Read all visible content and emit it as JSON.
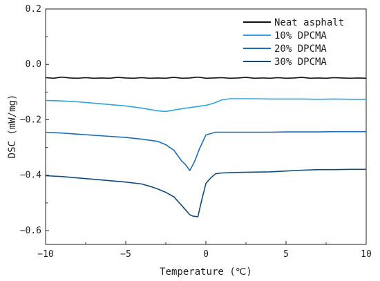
{
  "chart_data": {
    "type": "line",
    "title": "",
    "xlabel": "Temperature (℃)",
    "ylabel": "DSC (mW/mg)",
    "xlim": [
      -10,
      10
    ],
    "ylim": [
      -0.65,
      0.2
    ],
    "xticks": [
      -10,
      -5,
      0,
      5,
      10
    ],
    "xtick_labels": [
      "−10",
      "−5",
      "0",
      "5",
      "10"
    ],
    "yticks": [
      -0.6,
      -0.4,
      -0.2,
      0.0,
      0.2
    ],
    "ytick_labels": [
      "−0.6",
      "−0.4",
      "−0.2",
      "0.0",
      "0.2"
    ],
    "grid": false,
    "legend_position": "top-right",
    "series": [
      {
        "name": "Neat asphalt",
        "color": "#111111",
        "x": [
          -10,
          -9.5,
          -9,
          -8.5,
          -8,
          -7.5,
          -7,
          -6.5,
          -6,
          -5.5,
          -5,
          -4.5,
          -4,
          -3.5,
          -3,
          -2.5,
          -2,
          -1.5,
          -1,
          -0.5,
          0,
          0.5,
          1,
          1.5,
          2,
          2.5,
          3,
          3.5,
          4,
          4.5,
          5,
          5.5,
          6,
          6.5,
          7,
          7.5,
          8,
          8.5,
          9,
          9.5,
          10
        ],
        "y": [
          -0.048,
          -0.05,
          -0.046,
          -0.049,
          -0.05,
          -0.048,
          -0.05,
          -0.049,
          -0.05,
          -0.047,
          -0.049,
          -0.05,
          -0.048,
          -0.05,
          -0.049,
          -0.05,
          -0.047,
          -0.05,
          -0.049,
          -0.046,
          -0.05,
          -0.049,
          -0.048,
          -0.05,
          -0.049,
          -0.047,
          -0.05,
          -0.049,
          -0.05,
          -0.048,
          -0.05,
          -0.049,
          -0.047,
          -0.05,
          -0.049,
          -0.05,
          -0.048,
          -0.049,
          -0.05,
          -0.049,
          -0.05
        ]
      },
      {
        "name": "10% DPCMA",
        "color": "#2ea3e3",
        "x": [
          -10,
          -9,
          -8,
          -7,
          -6,
          -5,
          -4,
          -3,
          -2.5,
          -2,
          -1.5,
          -1,
          -0.5,
          0,
          0.5,
          1,
          1.5,
          2,
          3,
          4,
          5,
          6,
          7,
          8,
          9,
          10
        ],
        "y": [
          -0.13,
          -0.132,
          -0.135,
          -0.14,
          -0.145,
          -0.15,
          -0.158,
          -0.168,
          -0.17,
          -0.165,
          -0.16,
          -0.156,
          -0.152,
          -0.148,
          -0.14,
          -0.128,
          -0.124,
          -0.124,
          -0.124,
          -0.125,
          -0.125,
          -0.125,
          -0.126,
          -0.125,
          -0.126,
          -0.126
        ]
      },
      {
        "name": "20% DPCMA",
        "color": "#1a6db5",
        "x": [
          -10,
          -9,
          -8,
          -7,
          -6,
          -5,
          -4,
          -3,
          -2.5,
          -2,
          -1.5,
          -1.3,
          -1,
          -0.7,
          -0.4,
          0,
          0.3,
          0.6,
          1,
          2,
          3,
          4,
          5,
          6,
          7,
          8,
          9,
          10
        ],
        "y": [
          -0.245,
          -0.248,
          -0.252,
          -0.256,
          -0.26,
          -0.264,
          -0.27,
          -0.278,
          -0.29,
          -0.31,
          -0.35,
          -0.36,
          -0.383,
          -0.35,
          -0.305,
          -0.255,
          -0.25,
          -0.245,
          -0.245,
          -0.245,
          -0.245,
          -0.245,
          -0.244,
          -0.244,
          -0.244,
          -0.243,
          -0.243,
          -0.243
        ]
      },
      {
        "name": "30% DPCMA",
        "color": "#0d4a7e",
        "x": [
          -10,
          -9,
          -8,
          -7,
          -6,
          -5,
          -4,
          -3.5,
          -3,
          -2.5,
          -2,
          -1.5,
          -1,
          -0.8,
          -0.5,
          -0.3,
          0,
          0.3,
          0.6,
          1,
          2,
          3,
          4,
          5,
          6,
          7,
          8,
          9,
          10
        ],
        "y": [
          -0.402,
          -0.405,
          -0.41,
          -0.415,
          -0.42,
          -0.425,
          -0.432,
          -0.44,
          -0.45,
          -0.462,
          -0.478,
          -0.51,
          -0.543,
          -0.548,
          -0.55,
          -0.5,
          -0.43,
          -0.41,
          -0.395,
          -0.392,
          -0.39,
          -0.389,
          -0.388,
          -0.385,
          -0.382,
          -0.38,
          -0.38,
          -0.379,
          -0.379
        ]
      }
    ]
  }
}
